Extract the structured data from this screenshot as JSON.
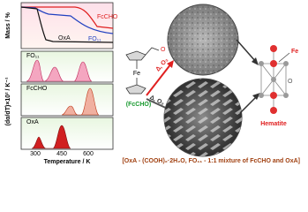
{
  "tga": {
    "y_label": "Mass / %",
    "series": [
      "FcCHO",
      "FO₁₁",
      "OxA"
    ]
  },
  "dtg": {
    "y_label": "(dα/dT)×10² / K⁻¹",
    "panels": [
      "FO₁₁",
      "FcCHO",
      "OxA"
    ]
  },
  "x_label": "Temperature / K",
  "x_ticks": [
    "300",
    "450",
    "600"
  ],
  "molecule": {
    "atom": "Fe",
    "name": "(FcCHO)"
  },
  "arrows": [
    "Δ, O₂",
    "Δ, O₂"
  ],
  "product": {
    "label": "Hematite",
    "atoms": [
      "Fe",
      "O"
    ]
  },
  "footer": "[OxA - (COOH)₂·2H₂O, FO₁₁ - 1:1 mixture of FcCHO and OxA]"
}
